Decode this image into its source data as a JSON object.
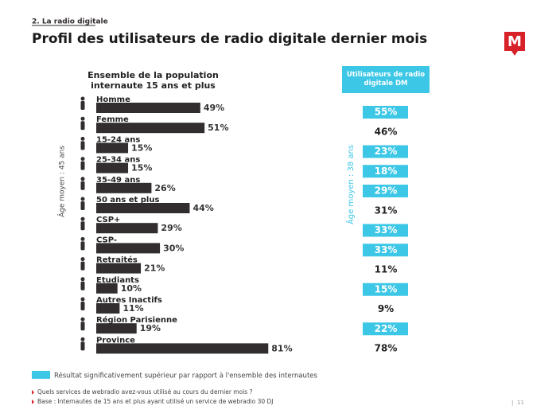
{
  "header": {
    "section": "2. La radio digitale",
    "title": "Profil des utilisateurs de radio digitale dernier mois"
  },
  "chart_data": {
    "type": "bar",
    "orientation": "horizontal",
    "title": "Ensemble de la population internaute 15 ans et plus",
    "categories": [
      "Homme",
      "Femme",
      "15-24 ans",
      "25-34 ans",
      "35-49 ans",
      "50 ans et plus",
      "CSP+",
      "CSP-",
      "Retraités",
      "Etudiants",
      "Autres Inactifs",
      "Région Parisienne",
      "Province"
    ],
    "values": [
      49,
      51,
      15,
      15,
      26,
      44,
      29,
      30,
      21,
      10,
      11,
      19,
      81
    ],
    "value_labels": [
      "49%",
      "51%",
      "15%",
      "15%",
      "26%",
      "44%",
      "29%",
      "30%",
      "21%",
      "10%",
      "11%",
      "19%",
      "81%"
    ],
    "color": "#322d2e",
    "age_note": "Âge moyen : 45 ans",
    "dm_column": {
      "title": "Utilisateurs de radio digitale DM",
      "values": [
        55,
        46,
        23,
        18,
        29,
        31,
        33,
        33,
        11,
        15,
        9,
        22,
        78
      ],
      "value_labels": [
        "55%",
        "46%",
        "23%",
        "18%",
        "29%",
        "31%",
        "33%",
        "33%",
        "11%",
        "15%",
        "9%",
        "22%",
        "78%"
      ],
      "highlight": [
        true,
        false,
        true,
        true,
        true,
        false,
        true,
        true,
        false,
        true,
        false,
        true,
        false
      ],
      "highlight_color": "#3dc7e6",
      "age_note": "Âge moyen : 38 ans"
    },
    "legend": "Résultat significativement supérieur par rapport à l'ensemble des internautes"
  },
  "footnotes": [
    "Quels services de webradio avez-vous utilisé au cours du dernier mois ?",
    "Base : Internautes de 15 ans et plus ayant utilisé un service de webradio 30 DJ"
  ],
  "page_number": "11",
  "logo": "M"
}
